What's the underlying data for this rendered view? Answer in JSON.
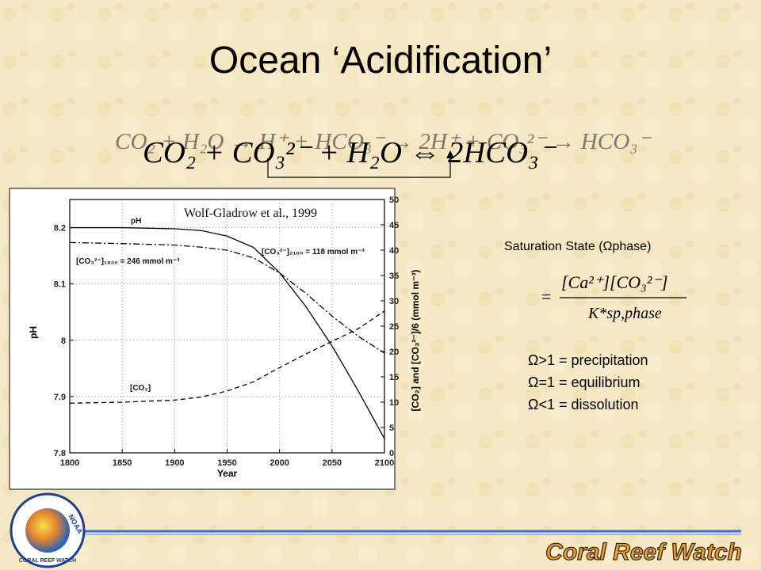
{
  "title": "Ocean ‘Acidification’",
  "equation_back": "CO₂ + H₂O → H⁺ + HCO₃⁻ → 2H⁺ + CO₃²⁻ → HCO₃⁻",
  "equation_main": "CO₂ + CO₃²⁻ + H₂O ⇔ 2HCO₃⁻",
  "saturation": {
    "heading": "Saturation State (Ωphase)",
    "numerator": "[Ca²⁺][CO₃²⁻]",
    "denominator": "K*sp,phase",
    "equals": "=",
    "rules": [
      "Ω>1 = precipitation",
      "Ω=1 = equilibrium",
      "Ω<1 = dissolution"
    ]
  },
  "logo": {
    "agency": "NOAA",
    "ring": "CORAL REEF WATCH",
    "brand": "Coral Reef Watch"
  },
  "chart_data": {
    "type": "line",
    "citation": "Wolf-Gladrow et al., 1999",
    "x_label": "Year",
    "y_label": "pH",
    "y2_label": "[CO₂] and [CO₃²⁻]/6 (mmol m⁻³)",
    "annotations": [
      "pH",
      "[CO₃²⁻]₁₈₀₀ = 246 mmol m⁻³",
      "[CO₃²⁻]₂₁₀₀ = 118 mmol m⁻³",
      "[CO₂]"
    ],
    "x": [
      1800,
      1850,
      1900,
      1925,
      1950,
      1975,
      2000,
      2025,
      2050,
      2075,
      2100
    ],
    "series": [
      {
        "color": "#000000",
        "dash": "solid",
        "values": [
          8.2,
          8.2,
          8.198,
          8.195,
          8.185,
          8.165,
          8.12,
          8.06,
          7.99,
          7.91,
          7.825
        ]
      },
      {
        "color": "#000000",
        "dash": "dashdot",
        "axis": "y2",
        "values": [
          41.5,
          41.3,
          41,
          40.6,
          40,
          38.5,
          35.5,
          31.5,
          27,
          23,
          19.7
        ]
      },
      {
        "color": "#000000",
        "dash": "dashed",
        "axis": "y2",
        "values": [
          9.8,
          10,
          10.4,
          11,
          12.2,
          14,
          16.8,
          19.5,
          22,
          24.5,
          28
        ]
      }
    ],
    "xlim": [
      1800,
      2100
    ],
    "xticks": [
      1800,
      1850,
      1900,
      1950,
      2000,
      2050,
      2100
    ],
    "ylim": [
      7.8,
      8.25
    ],
    "yticks": [
      7.8,
      7.9,
      8,
      8.1,
      8.2
    ],
    "y2lim": [
      0,
      50
    ],
    "y2ticks": [
      0,
      5,
      10,
      15,
      20,
      25,
      30,
      35,
      40,
      45,
      50
    ],
    "grid": true
  }
}
